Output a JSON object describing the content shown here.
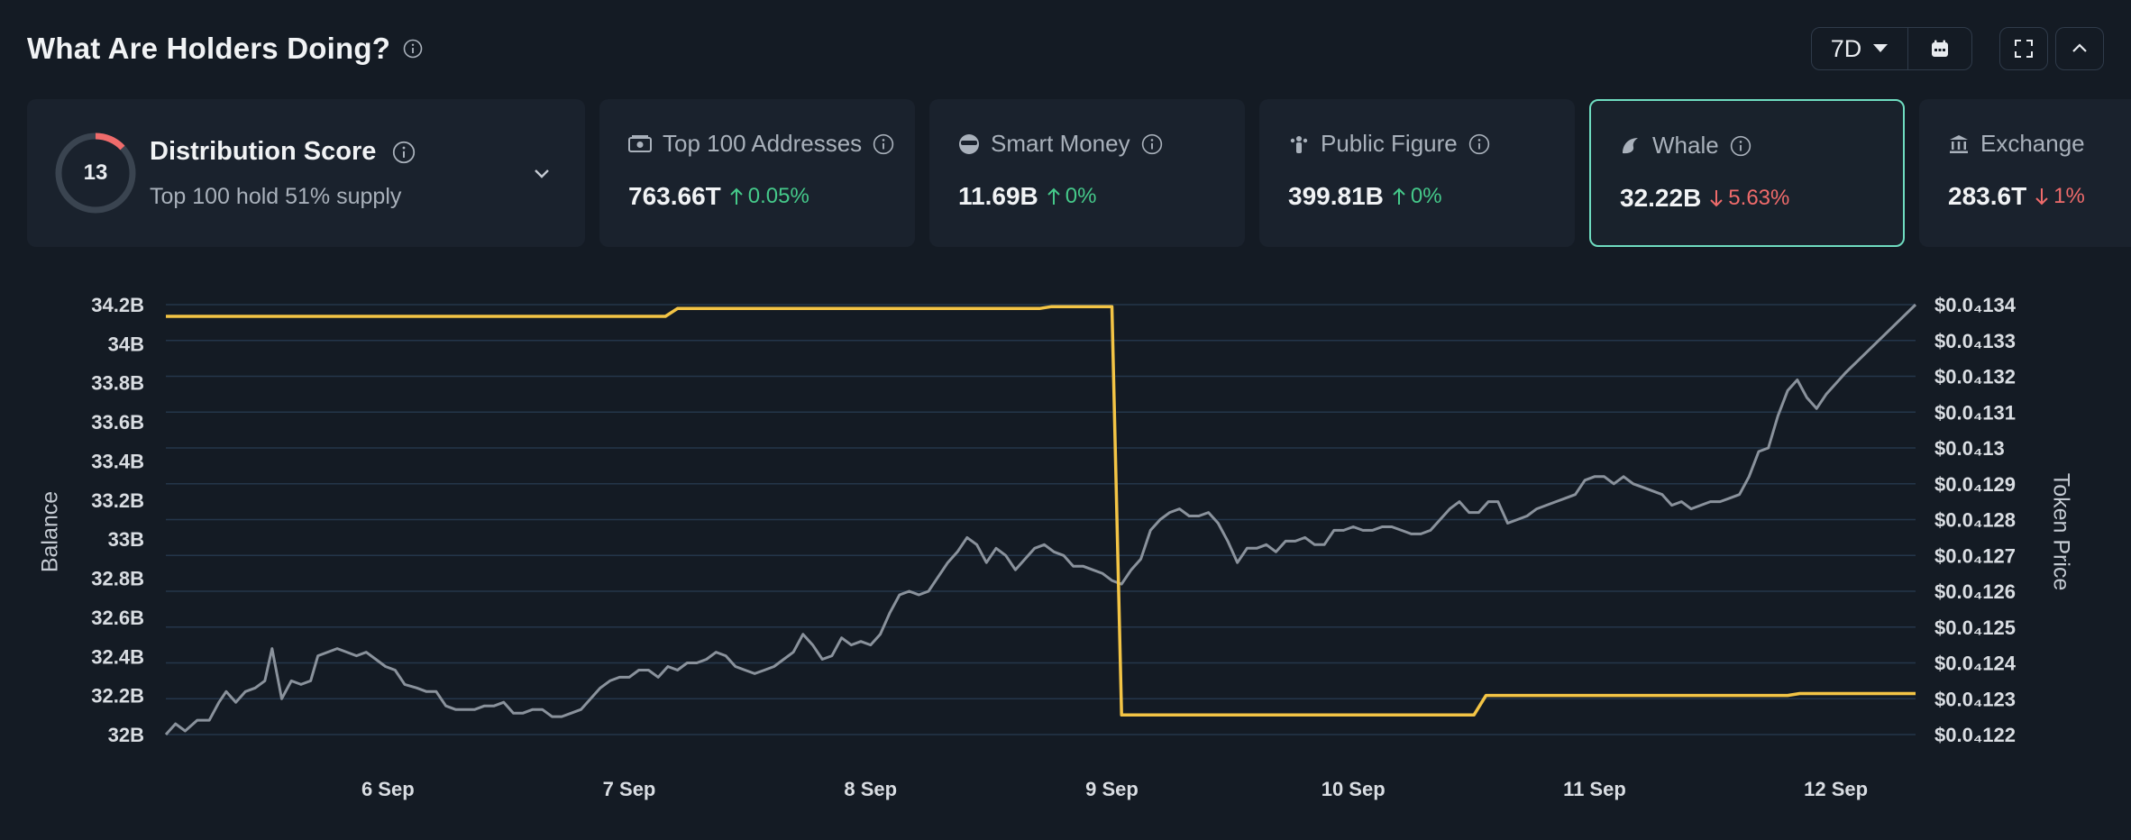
{
  "header": {
    "title": "What Are Holders Doing?"
  },
  "controls": {
    "range_label": "7D",
    "icons": [
      "calendar-icon",
      "fullscreen-icon",
      "collapse-icon"
    ]
  },
  "distribution": {
    "score": "13",
    "score_fraction": 0.13,
    "title": "Distribution Score",
    "subtitle": "Top 100 hold 51% supply"
  },
  "cards": [
    {
      "name": "top-100-addresses",
      "icon": "money-icon",
      "label": "Top 100 Addresses",
      "value": "763.66T",
      "change": "0.05%",
      "direction": "up"
    },
    {
      "name": "smart-money",
      "icon": "sunglasses-icon",
      "label": "Smart Money",
      "value": "11.69B",
      "change": "0%",
      "direction": "up"
    },
    {
      "name": "public-figure",
      "icon": "public-figure-icon",
      "label": "Public Figure",
      "value": "399.81B",
      "change": "0%",
      "direction": "up"
    },
    {
      "name": "whale",
      "icon": "whale-icon",
      "label": "Whale",
      "value": "32.22B",
      "change": "5.63%",
      "direction": "down",
      "active": true
    },
    {
      "name": "exchange",
      "icon": "bank-icon",
      "label": "Exchange",
      "value": "283.6T",
      "change": "1%",
      "direction": "down"
    }
  ],
  "colors": {
    "balance_line": "#f3c445",
    "price_line": "#8a929c",
    "up": "#45c98a",
    "down": "#ef6b6b",
    "active_border": "#6fdcc0"
  },
  "chart_data": {
    "type": "line",
    "xlabels": [
      "6 Sep",
      "7 Sep",
      "8 Sep",
      "9 Sep",
      "10 Sep",
      "11 Sep",
      "12 Sep"
    ],
    "x_domain_days": [
      5.08,
      12.33
    ],
    "ylabel_left": "Balance",
    "ylabel_right": "Token Price",
    "left_axis": {
      "ylim": [
        32.0,
        34.2
      ],
      "ticks": [
        32.0,
        32.2,
        32.4,
        32.6,
        32.8,
        33.0,
        33.2,
        33.4,
        33.6,
        33.8,
        34.0,
        34.2
      ],
      "tick_labels": [
        "32B",
        "32.2B",
        "32.4B",
        "32.6B",
        "32.8B",
        "33B",
        "33.2B",
        "33.4B",
        "33.6B",
        "33.8B",
        "34B",
        "34.2B"
      ]
    },
    "right_axis": {
      "ylim": [
        0.0122,
        0.0134
      ],
      "tick_labels": [
        "$0.0₄122",
        "$0.0₄123",
        "$0.0₄124",
        "$0.0₄125",
        "$0.0₄126",
        "$0.0₄127",
        "$0.0₄128",
        "$0.0₄129",
        "$0.0₄13",
        "$0.0₄131",
        "$0.0₄132",
        "$0.0₄133",
        "$0.0₄134"
      ]
    },
    "grid": true,
    "series": [
      {
        "axis": "left",
        "points": [
          [
            5.08,
            34.14
          ],
          [
            7.15,
            34.14
          ],
          [
            7.2,
            34.18
          ],
          [
            8.7,
            34.18
          ],
          [
            8.75,
            34.19
          ],
          [
            9.0,
            34.19
          ],
          [
            9.04,
            32.1
          ],
          [
            10.5,
            32.1
          ],
          [
            10.55,
            32.2
          ],
          [
            11.8,
            32.2
          ],
          [
            11.85,
            32.21
          ],
          [
            12.33,
            32.21
          ]
        ]
      },
      {
        "axis": "right",
        "points": [
          [
            5.08,
            0.0122
          ],
          [
            5.12,
            0.01223
          ],
          [
            5.16,
            0.01221
          ],
          [
            5.21,
            0.01224
          ],
          [
            5.26,
            0.01224
          ],
          [
            5.3,
            0.01229
          ],
          [
            5.33,
            0.01232
          ],
          [
            5.37,
            0.01229
          ],
          [
            5.41,
            0.01232
          ],
          [
            5.45,
            0.01233
          ],
          [
            5.49,
            0.01235
          ],
          [
            5.52,
            0.01244
          ],
          [
            5.56,
            0.0123
          ],
          [
            5.6,
            0.01235
          ],
          [
            5.64,
            0.01234
          ],
          [
            5.68,
            0.01235
          ],
          [
            5.71,
            0.01242
          ],
          [
            5.75,
            0.01243
          ],
          [
            5.79,
            0.01244
          ],
          [
            5.83,
            0.01243
          ],
          [
            5.87,
            0.01242
          ],
          [
            5.91,
            0.01243
          ],
          [
            5.95,
            0.01241
          ],
          [
            5.99,
            0.01239
          ],
          [
            6.03,
            0.01238
          ],
          [
            6.07,
            0.01234
          ],
          [
            6.12,
            0.01233
          ],
          [
            6.16,
            0.01232
          ],
          [
            6.2,
            0.01232
          ],
          [
            6.24,
            0.01228
          ],
          [
            6.28,
            0.01227
          ],
          [
            6.32,
            0.01227
          ],
          [
            6.36,
            0.01227
          ],
          [
            6.4,
            0.01228
          ],
          [
            6.44,
            0.01228
          ],
          [
            6.48,
            0.01229
          ],
          [
            6.52,
            0.01226
          ],
          [
            6.56,
            0.01226
          ],
          [
            6.6,
            0.01227
          ],
          [
            6.64,
            0.01227
          ],
          [
            6.68,
            0.01225
          ],
          [
            6.72,
            0.01225
          ],
          [
            6.76,
            0.01226
          ],
          [
            6.8,
            0.01227
          ],
          [
            6.84,
            0.0123
          ],
          [
            6.88,
            0.01233
          ],
          [
            6.92,
            0.01235
          ],
          [
            6.96,
            0.01236
          ],
          [
            7.0,
            0.01236
          ],
          [
            7.04,
            0.01238
          ],
          [
            7.08,
            0.01238
          ],
          [
            7.12,
            0.01236
          ],
          [
            7.16,
            0.01239
          ],
          [
            7.2,
            0.01238
          ],
          [
            7.24,
            0.0124
          ],
          [
            7.28,
            0.0124
          ],
          [
            7.32,
            0.01241
          ],
          [
            7.36,
            0.01243
          ],
          [
            7.4,
            0.01242
          ],
          [
            7.44,
            0.01239
          ],
          [
            7.48,
            0.01238
          ],
          [
            7.52,
            0.01237
          ],
          [
            7.56,
            0.01238
          ],
          [
            7.6,
            0.01239
          ],
          [
            7.64,
            0.01241
          ],
          [
            7.68,
            0.01243
          ],
          [
            7.72,
            0.01248
          ],
          [
            7.76,
            0.01245
          ],
          [
            7.8,
            0.01241
          ],
          [
            7.84,
            0.01242
          ],
          [
            7.88,
            0.01247
          ],
          [
            7.92,
            0.01245
          ],
          [
            7.96,
            0.01246
          ],
          [
            8.0,
            0.01245
          ],
          [
            8.04,
            0.01248
          ],
          [
            8.08,
            0.01254
          ],
          [
            8.12,
            0.01259
          ],
          [
            8.16,
            0.0126
          ],
          [
            8.2,
            0.01259
          ],
          [
            8.24,
            0.0126
          ],
          [
            8.28,
            0.01264
          ],
          [
            8.32,
            0.01268
          ],
          [
            8.36,
            0.01271
          ],
          [
            8.4,
            0.01275
          ],
          [
            8.44,
            0.01273
          ],
          [
            8.48,
            0.01268
          ],
          [
            8.52,
            0.01272
          ],
          [
            8.56,
            0.0127
          ],
          [
            8.6,
            0.01266
          ],
          [
            8.64,
            0.01269
          ],
          [
            8.68,
            0.01272
          ],
          [
            8.72,
            0.01273
          ],
          [
            8.76,
            0.01271
          ],
          [
            8.8,
            0.0127
          ],
          [
            8.84,
            0.01267
          ],
          [
            8.88,
            0.01267
          ],
          [
            8.92,
            0.01266
          ],
          [
            8.96,
            0.01265
          ],
          [
            9.0,
            0.01263
          ],
          [
            9.04,
            0.01262
          ],
          [
            9.08,
            0.01266
          ],
          [
            9.12,
            0.01269
          ],
          [
            9.16,
            0.01277
          ],
          [
            9.2,
            0.0128
          ],
          [
            9.24,
            0.01282
          ],
          [
            9.28,
            0.01283
          ],
          [
            9.32,
            0.01281
          ],
          [
            9.36,
            0.01281
          ],
          [
            9.4,
            0.01282
          ],
          [
            9.44,
            0.01279
          ],
          [
            9.48,
            0.01274
          ],
          [
            9.52,
            0.01268
          ],
          [
            9.56,
            0.01272
          ],
          [
            9.6,
            0.01272
          ],
          [
            9.64,
            0.01273
          ],
          [
            9.68,
            0.01271
          ],
          [
            9.72,
            0.01274
          ],
          [
            9.76,
            0.01274
          ],
          [
            9.8,
            0.01275
          ],
          [
            9.84,
            0.01273
          ],
          [
            9.88,
            0.01273
          ],
          [
            9.92,
            0.01277
          ],
          [
            9.96,
            0.01277
          ],
          [
            10.0,
            0.01278
          ],
          [
            10.04,
            0.01277
          ],
          [
            10.08,
            0.01277
          ],
          [
            10.12,
            0.01278
          ],
          [
            10.16,
            0.01278
          ],
          [
            10.2,
            0.01277
          ],
          [
            10.24,
            0.01276
          ],
          [
            10.28,
            0.01276
          ],
          [
            10.32,
            0.01277
          ],
          [
            10.36,
            0.0128
          ],
          [
            10.4,
            0.01283
          ],
          [
            10.44,
            0.01285
          ],
          [
            10.48,
            0.01282
          ],
          [
            10.52,
            0.01282
          ],
          [
            10.56,
            0.01285
          ],
          [
            10.6,
            0.01285
          ],
          [
            10.64,
            0.01279
          ],
          [
            10.68,
            0.0128
          ],
          [
            10.72,
            0.01281
          ],
          [
            10.76,
            0.01283
          ],
          [
            10.8,
            0.01284
          ],
          [
            10.84,
            0.01285
          ],
          [
            10.88,
            0.01286
          ],
          [
            10.92,
            0.01287
          ],
          [
            10.96,
            0.01291
          ],
          [
            11.0,
            0.01292
          ],
          [
            11.04,
            0.01292
          ],
          [
            11.08,
            0.0129
          ],
          [
            11.12,
            0.01292
          ],
          [
            11.16,
            0.0129
          ],
          [
            11.2,
            0.01289
          ],
          [
            11.24,
            0.01288
          ],
          [
            11.28,
            0.01287
          ],
          [
            11.32,
            0.01284
          ],
          [
            11.36,
            0.01285
          ],
          [
            11.4,
            0.01283
          ],
          [
            11.44,
            0.01284
          ],
          [
            11.48,
            0.01285
          ],
          [
            11.52,
            0.01285
          ],
          [
            11.56,
            0.01286
          ],
          [
            11.6,
            0.01287
          ],
          [
            11.64,
            0.01292
          ],
          [
            11.68,
            0.01299
          ],
          [
            11.72,
            0.013
          ],
          [
            11.76,
            0.01309
          ],
          [
            11.8,
            0.01316
          ],
          [
            11.84,
            0.01319
          ],
          [
            11.88,
            0.01314
          ],
          [
            11.92,
            0.01311
          ],
          [
            11.96,
            0.01315
          ],
          [
            12.0,
            0.01318
          ],
          [
            12.04,
            0.01321
          ],
          [
            12.33,
            0.0134
          ]
        ]
      }
    ]
  }
}
